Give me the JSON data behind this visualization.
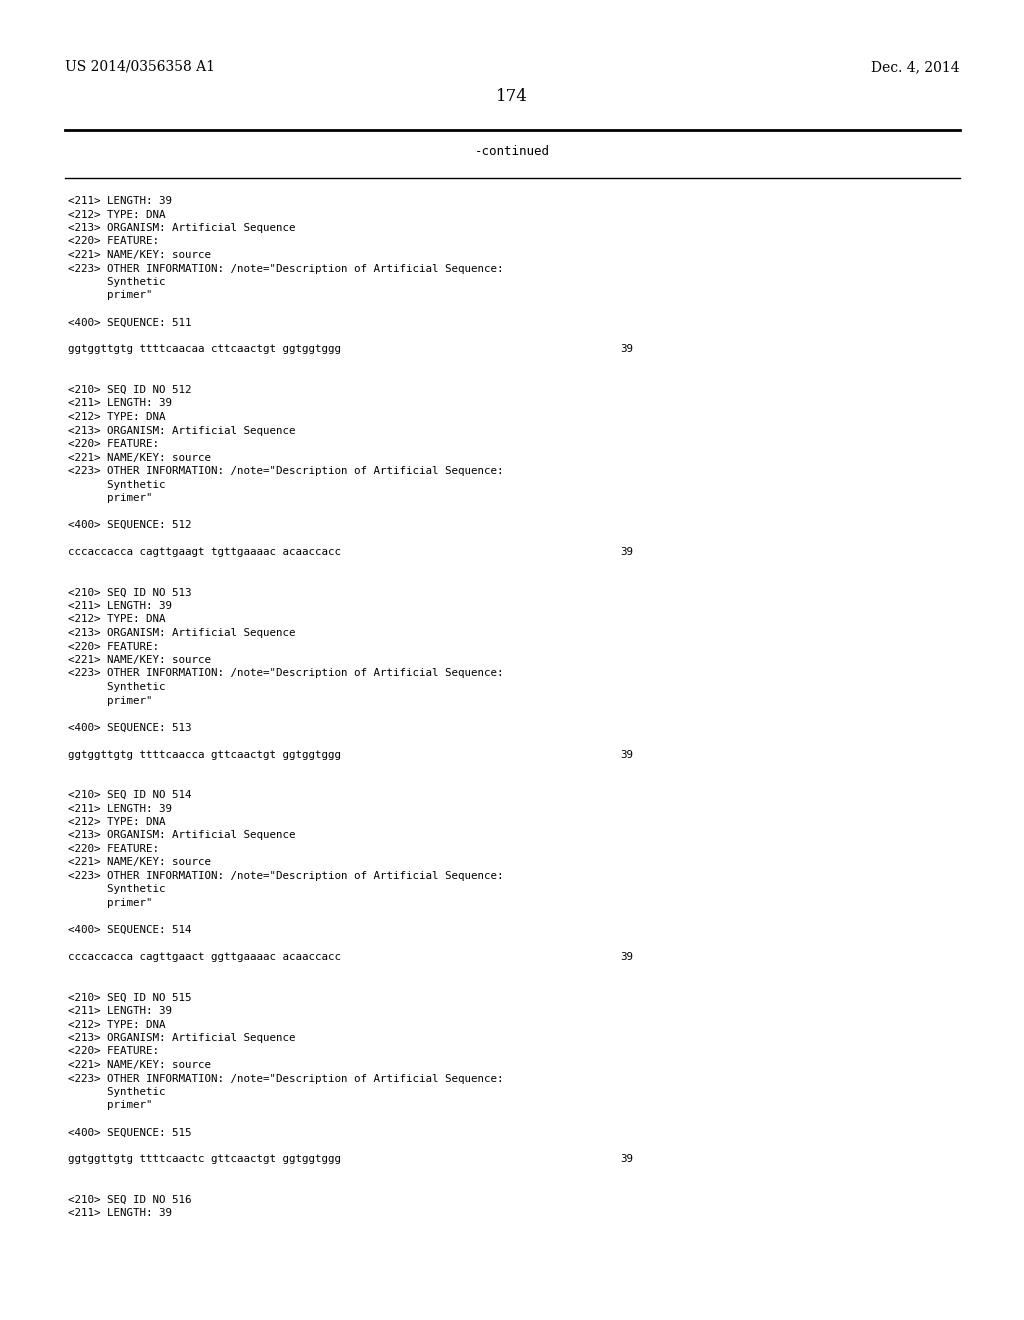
{
  "header_left": "US 2014/0356358 A1",
  "header_right": "Dec. 4, 2014",
  "page_number": "174",
  "continued_label": "-continued",
  "background_color": "#ffffff",
  "text_color": "#000000",
  "content_lines": [
    {
      "text": "<211> LENGTH: 39",
      "is_seq": false
    },
    {
      "text": "<212> TYPE: DNA",
      "is_seq": false
    },
    {
      "text": "<213> ORGANISM: Artificial Sequence",
      "is_seq": false
    },
    {
      "text": "<220> FEATURE:",
      "is_seq": false
    },
    {
      "text": "<221> NAME/KEY: source",
      "is_seq": false
    },
    {
      "text": "<223> OTHER INFORMATION: /note=\"Description of Artificial Sequence:",
      "is_seq": false
    },
    {
      "text": "      Synthetic",
      "is_seq": false
    },
    {
      "text": "      primer\"",
      "is_seq": false
    },
    {
      "text": "",
      "is_seq": false
    },
    {
      "text": "<400> SEQUENCE: 511",
      "is_seq": false
    },
    {
      "text": "",
      "is_seq": false
    },
    {
      "text": "ggtggttgtg ttttcaacaa cttcaactgt ggtggtggg",
      "is_seq": true,
      "count": "39"
    },
    {
      "text": "",
      "is_seq": false
    },
    {
      "text": "",
      "is_seq": false
    },
    {
      "text": "<210> SEQ ID NO 512",
      "is_seq": false
    },
    {
      "text": "<211> LENGTH: 39",
      "is_seq": false
    },
    {
      "text": "<212> TYPE: DNA",
      "is_seq": false
    },
    {
      "text": "<213> ORGANISM: Artificial Sequence",
      "is_seq": false
    },
    {
      "text": "<220> FEATURE:",
      "is_seq": false
    },
    {
      "text": "<221> NAME/KEY: source",
      "is_seq": false
    },
    {
      "text": "<223> OTHER INFORMATION: /note=\"Description of Artificial Sequence:",
      "is_seq": false
    },
    {
      "text": "      Synthetic",
      "is_seq": false
    },
    {
      "text": "      primer\"",
      "is_seq": false
    },
    {
      "text": "",
      "is_seq": false
    },
    {
      "text": "<400> SEQUENCE: 512",
      "is_seq": false
    },
    {
      "text": "",
      "is_seq": false
    },
    {
      "text": "cccaccacca cagttgaagt tgttgaaaac acaaccacc",
      "is_seq": true,
      "count": "39"
    },
    {
      "text": "",
      "is_seq": false
    },
    {
      "text": "",
      "is_seq": false
    },
    {
      "text": "<210> SEQ ID NO 513",
      "is_seq": false
    },
    {
      "text": "<211> LENGTH: 39",
      "is_seq": false
    },
    {
      "text": "<212> TYPE: DNA",
      "is_seq": false
    },
    {
      "text": "<213> ORGANISM: Artificial Sequence",
      "is_seq": false
    },
    {
      "text": "<220> FEATURE:",
      "is_seq": false
    },
    {
      "text": "<221> NAME/KEY: source",
      "is_seq": false
    },
    {
      "text": "<223> OTHER INFORMATION: /note=\"Description of Artificial Sequence:",
      "is_seq": false
    },
    {
      "text": "      Synthetic",
      "is_seq": false
    },
    {
      "text": "      primer\"",
      "is_seq": false
    },
    {
      "text": "",
      "is_seq": false
    },
    {
      "text": "<400> SEQUENCE: 513",
      "is_seq": false
    },
    {
      "text": "",
      "is_seq": false
    },
    {
      "text": "ggtggttgtg ttttcaacca gttcaactgt ggtggtggg",
      "is_seq": true,
      "count": "39"
    },
    {
      "text": "",
      "is_seq": false
    },
    {
      "text": "",
      "is_seq": false
    },
    {
      "text": "<210> SEQ ID NO 514",
      "is_seq": false
    },
    {
      "text": "<211> LENGTH: 39",
      "is_seq": false
    },
    {
      "text": "<212> TYPE: DNA",
      "is_seq": false
    },
    {
      "text": "<213> ORGANISM: Artificial Sequence",
      "is_seq": false
    },
    {
      "text": "<220> FEATURE:",
      "is_seq": false
    },
    {
      "text": "<221> NAME/KEY: source",
      "is_seq": false
    },
    {
      "text": "<223> OTHER INFORMATION: /note=\"Description of Artificial Sequence:",
      "is_seq": false
    },
    {
      "text": "      Synthetic",
      "is_seq": false
    },
    {
      "text": "      primer\"",
      "is_seq": false
    },
    {
      "text": "",
      "is_seq": false
    },
    {
      "text": "<400> SEQUENCE: 514",
      "is_seq": false
    },
    {
      "text": "",
      "is_seq": false
    },
    {
      "text": "cccaccacca cagttgaact ggttgaaaac acaaccacc",
      "is_seq": true,
      "count": "39"
    },
    {
      "text": "",
      "is_seq": false
    },
    {
      "text": "",
      "is_seq": false
    },
    {
      "text": "<210> SEQ ID NO 515",
      "is_seq": false
    },
    {
      "text": "<211> LENGTH: 39",
      "is_seq": false
    },
    {
      "text": "<212> TYPE: DNA",
      "is_seq": false
    },
    {
      "text": "<213> ORGANISM: Artificial Sequence",
      "is_seq": false
    },
    {
      "text": "<220> FEATURE:",
      "is_seq": false
    },
    {
      "text": "<221> NAME/KEY: source",
      "is_seq": false
    },
    {
      "text": "<223> OTHER INFORMATION: /note=\"Description of Artificial Sequence:",
      "is_seq": false
    },
    {
      "text": "      Synthetic",
      "is_seq": false
    },
    {
      "text": "      primer\"",
      "is_seq": false
    },
    {
      "text": "",
      "is_seq": false
    },
    {
      "text": "<400> SEQUENCE: 515",
      "is_seq": false
    },
    {
      "text": "",
      "is_seq": false
    },
    {
      "text": "ggtggttgtg ttttcaactc gttcaactgt ggtggtggg",
      "is_seq": true,
      "count": "39"
    },
    {
      "text": "",
      "is_seq": false
    },
    {
      "text": "",
      "is_seq": false
    },
    {
      "text": "<210> SEQ ID NO 516",
      "is_seq": false
    },
    {
      "text": "<211> LENGTH: 39",
      "is_seq": false
    }
  ],
  "header_font_size": 10.0,
  "page_num_font_size": 12.0,
  "continued_font_size": 9.0,
  "body_font_size": 7.8
}
